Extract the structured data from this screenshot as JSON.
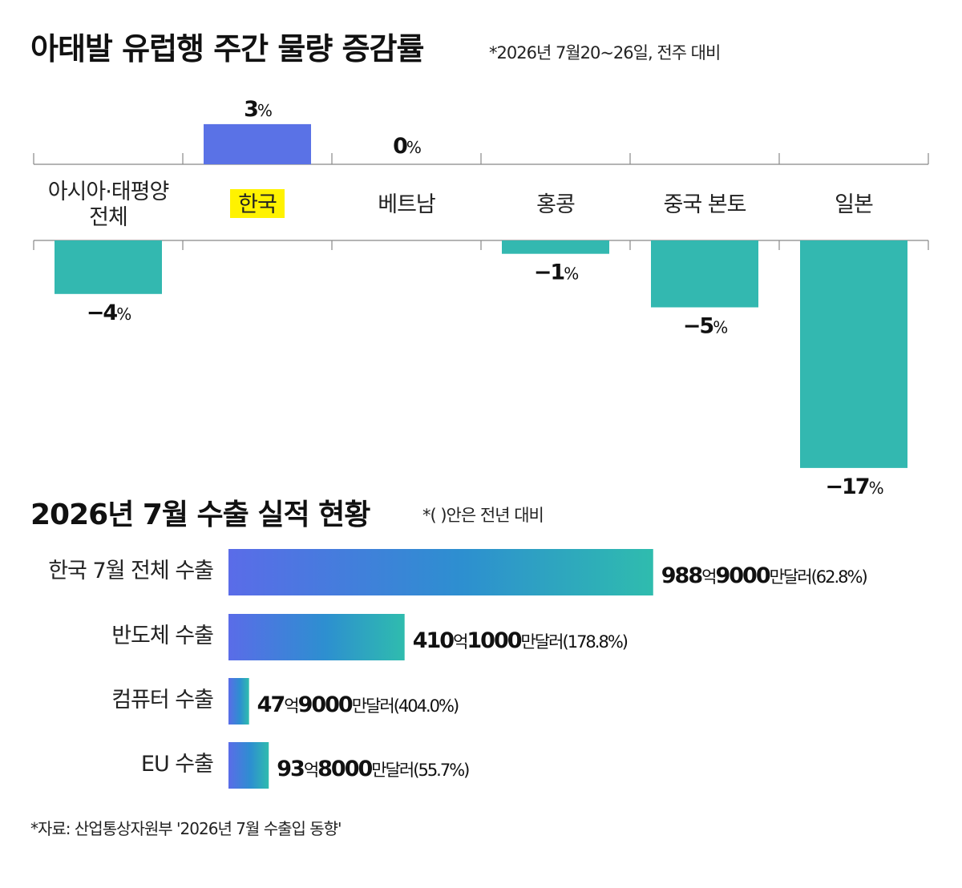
{
  "chart_data": [
    {
      "type": "bar",
      "title": "아태발 유럽행 주간 물량 증감률",
      "note": "*2026년 7월20~26일, 전주 대비",
      "categories": [
        {
          "line1": "아시아·태평양",
          "line2": "전체"
        },
        {
          "line1": "한국",
          "line2": ""
        },
        {
          "line1": "베트남",
          "line2": ""
        },
        {
          "line1": "홍콩",
          "line2": ""
        },
        {
          "line1": "중국 본토",
          "line2": ""
        },
        {
          "line1": "일본",
          "line2": ""
        }
      ],
      "values": [
        -4,
        3,
        0,
        -1,
        -5,
        -17
      ],
      "value_labels": [
        "−4",
        "3",
        "0",
        "−1",
        "−5",
        "−17"
      ],
      "unit": "%",
      "highlight_category": "한국",
      "colors": {
        "positive": "#5a72e6",
        "negative": "#33b8b0",
        "highlight": "#fff200"
      }
    },
    {
      "type": "bar",
      "orientation": "horizontal",
      "title": "2026년 7월 수출 실적 현황",
      "note": "*(  )안은 전년 대비",
      "categories": [
        "한국 7월 전체 수출",
        "반도체 수출",
        "컴퓨터 수출",
        "EU 수출"
      ],
      "values": [
        988.9,
        410.1,
        47.9,
        93.8
      ],
      "value_labels": [
        {
          "n1": "988",
          "u1": "억",
          "n2": "9000",
          "u2": "만달러",
          "yoy": "(62.8%)"
        },
        {
          "n1": "410",
          "u1": "억",
          "n2": "1000",
          "u2": "만달러",
          "yoy": "(178.8%)"
        },
        {
          "n1": "47",
          "u1": "억",
          "n2": "9000",
          "u2": "만달러",
          "yoy": "(404.0%)"
        },
        {
          "n1": "93",
          "u1": "억",
          "n2": "8000",
          "u2": "만달러",
          "yoy": "(55.7%)"
        }
      ],
      "colors": {
        "gradient_start": "#5a6ce8",
        "gradient_mid": "#2d8fd0",
        "gradient_end": "#2fbcae"
      }
    }
  ],
  "source": "*자료: 산업통상자원부 '2026년 7월 수출입 동향'"
}
